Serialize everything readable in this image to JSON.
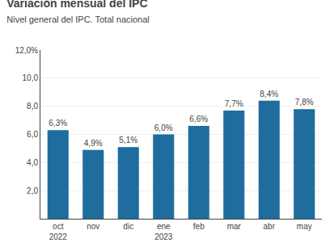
{
  "chart_data": {
    "type": "bar",
    "title": "Variación mensual del IPC",
    "subtitle": "Nivel general del IPC. Total nacional",
    "categories": [
      "oct\n2022",
      "nov",
      "dic",
      "ene\n2023",
      "feb",
      "mar",
      "abr",
      "may"
    ],
    "values": [
      6.3,
      4.9,
      5.1,
      6.0,
      6.6,
      7.7,
      8.4,
      7.8
    ],
    "value_labels": [
      "6,3%",
      "4,9%",
      "5,1%",
      "6,0%",
      "6,6%",
      "7,7%",
      "8,4%",
      "7,8%"
    ],
    "color": "#1e6d9e",
    "ylim": [
      0,
      12
    ],
    "yticks": [
      {
        "value": 2.0,
        "label": "2,0"
      },
      {
        "value": 4.0,
        "label": "4,0"
      },
      {
        "value": 6.0,
        "label": "6,0"
      },
      {
        "value": 8.0,
        "label": "8,0"
      },
      {
        "value": 10.0,
        "label": "10,0"
      },
      {
        "value": 12.0,
        "label": "12,0%"
      }
    ],
    "grid": true,
    "data_labels": true
  }
}
